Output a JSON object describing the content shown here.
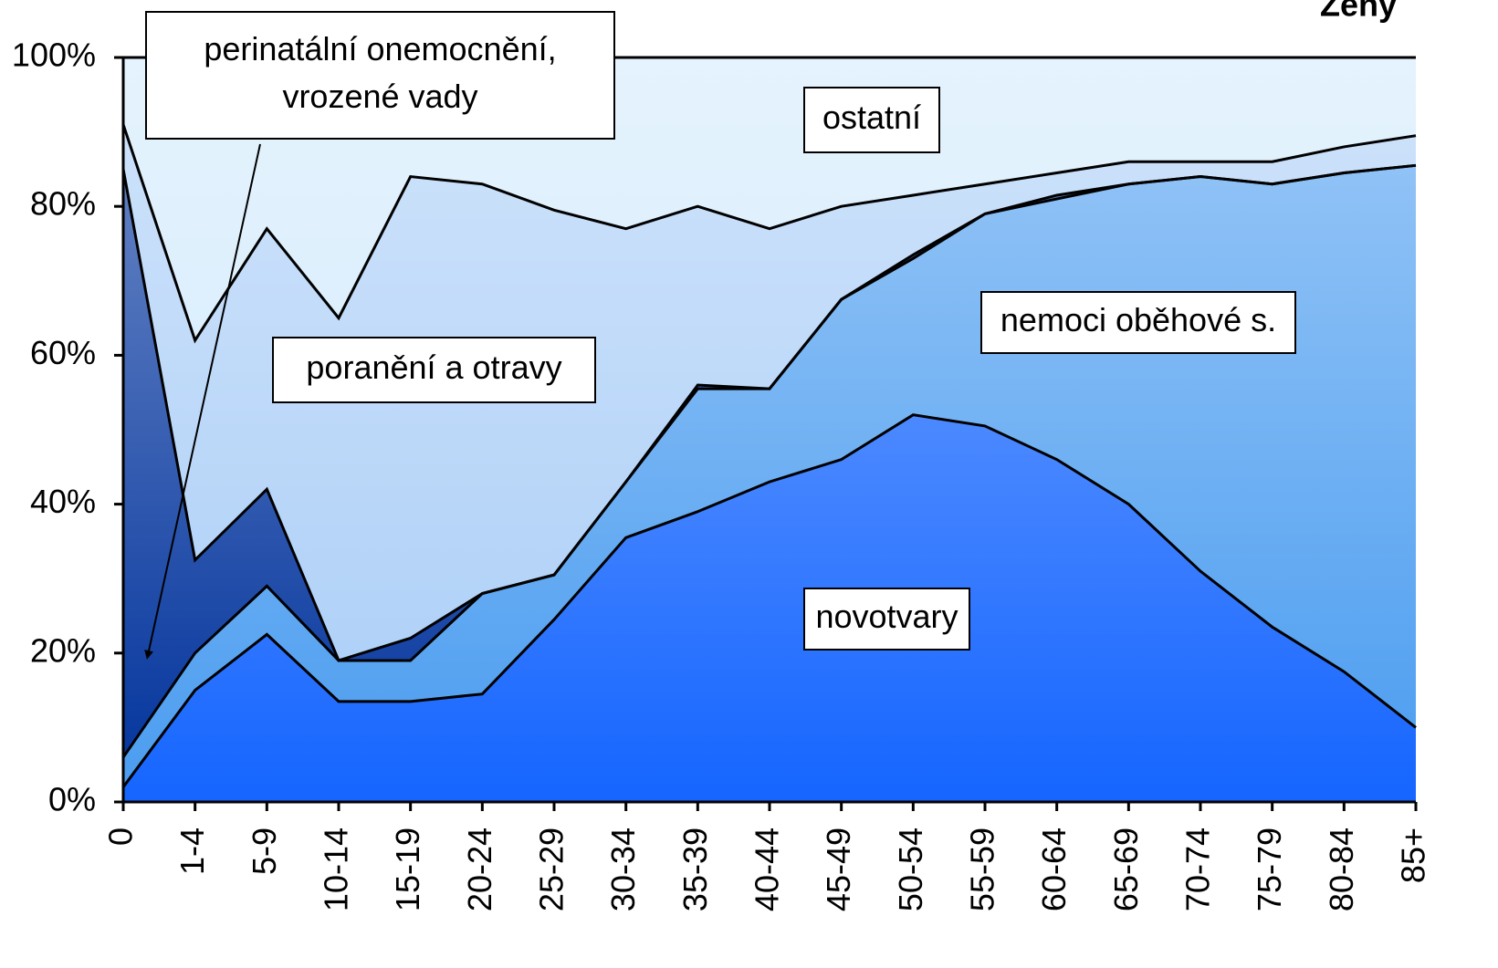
{
  "chart_data": {
    "type": "stacked_area",
    "title": "Ženy",
    "categories": [
      "0",
      "1-4",
      "5-9",
      "10-14",
      "15-19",
      "20-24",
      "25-29",
      "30-34",
      "35-39",
      "40-44",
      "45-49",
      "50-54",
      "55-59",
      "60-64",
      "65-69",
      "70-74",
      "75-79",
      "80-84",
      "85+"
    ],
    "series": [
      {
        "name": "novotvary",
        "color": "#1565ff",
        "values": [
          2,
          15,
          22.5,
          13.5,
          13.5,
          14.5,
          24.5,
          35.5,
          39,
          43,
          46,
          52,
          50.5,
          46,
          40,
          31,
          23.5,
          17.5,
          10
        ]
      },
      {
        "name": "nemoci oběhové s.",
        "color": "#4a9cf0",
        "values": [
          4,
          5,
          6.5,
          5.5,
          5.5,
          13.5,
          6,
          7.5,
          16.5,
          12.5,
          21.5,
          21,
          28.5,
          35,
          43,
          53,
          59.5,
          67,
          75.5
        ]
      },
      {
        "name": "perinatální onemocnění, vrozené vady",
        "color": "#00329c",
        "values": [
          79,
          12.5,
          13,
          0,
          3,
          0,
          0,
          0,
          0.5,
          0,
          0,
          0.5,
          0,
          0.5,
          0,
          0,
          0,
          0,
          0
        ]
      },
      {
        "name": "poranění a otravy",
        "color": "#a9cdf7",
        "values": [
          6,
          29.5,
          35,
          46,
          62,
          55,
          49,
          34,
          24,
          21.5,
          12.5,
          8,
          4,
          3,
          3,
          2,
          3,
          3.5,
          4
        ]
      },
      {
        "name": "ostatní",
        "color": "#cfe9fc",
        "values": [
          9,
          38,
          23,
          35,
          16,
          17,
          20.5,
          23,
          20,
          23,
          20,
          18.5,
          17,
          15.5,
          14,
          14,
          14,
          12,
          10.5
        ]
      }
    ],
    "annotations": [
      {
        "lines": [
          "perinatální onemocnění,",
          "vrozené vady"
        ]
      },
      {
        "lines": [
          "ostatní"
        ]
      },
      {
        "lines": [
          "poranění a otravy"
        ]
      },
      {
        "lines": [
          "nemoci oběhové s."
        ]
      },
      {
        "lines": [
          "novotvary"
        ]
      }
    ],
    "ylim": [
      0,
      100
    ],
    "yticks": [
      {
        "value": 0,
        "label": "0%"
      },
      {
        "value": 20,
        "label": "20%"
      },
      {
        "value": 40,
        "label": "40%"
      },
      {
        "value": 60,
        "label": "60%"
      },
      {
        "value": 80,
        "label": "80%"
      },
      {
        "value": 100,
        "label": "100%"
      }
    ]
  }
}
